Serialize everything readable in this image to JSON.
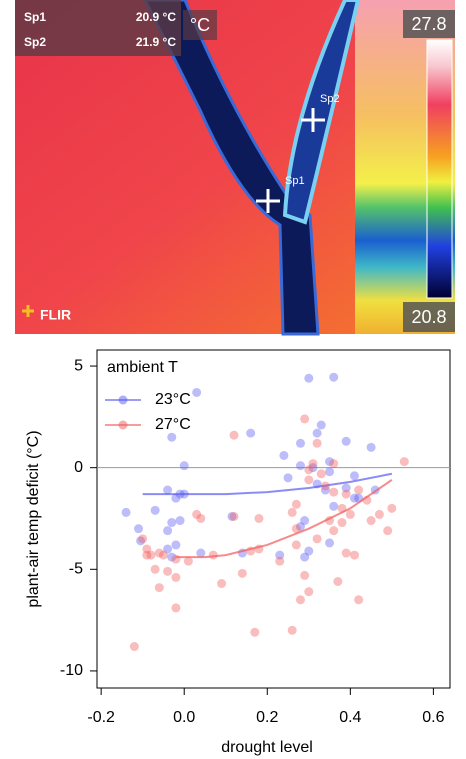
{
  "thermal_image": {
    "spots": [
      {
        "label": "Sp1",
        "value": "20.9 °C"
      },
      {
        "label": "Sp2",
        "value": "21.9 °C"
      }
    ],
    "unit": "°C",
    "scale_max": 27.8,
    "scale_min": 20.8,
    "brand": "FLIR",
    "markers": [
      "Sp1",
      "Sp2"
    ]
  },
  "chart_data": {
    "type": "scatter",
    "x_label": "drought level",
    "y_label": "plant-air temp deficit (°C)",
    "legend_title": "ambient T",
    "legend": "top-left",
    "xlim": [
      -0.21,
      0.64
    ],
    "ylim": [
      -10.84,
      5.79
    ],
    "xticks": [
      -0.2,
      {
        "value": 0,
        "label": "0.0"
      },
      0.2,
      0.4,
      0.6
    ],
    "yticks": [
      5,
      0,
      -5,
      -10
    ],
    "reference_line": 0,
    "series": [
      {
        "name": "23°C",
        "color": "#5a5af2",
        "x": [
          0.03,
          0.3,
          0.36,
          0.16,
          -0.03,
          0.0,
          0.33,
          0.32,
          0.39,
          0.45,
          0.28,
          0.24,
          0.35,
          0.28,
          0.31,
          0.35,
          0.41,
          0.32,
          0.39,
          0.46,
          -0.04,
          -0.01,
          0.0,
          -0.02,
          -0.07,
          -0.14,
          -0.03,
          -0.01,
          -0.11,
          -0.04,
          -0.105,
          -0.04,
          -0.02,
          0.04,
          -0.03,
          0.14,
          0.23,
          0.29,
          0.3,
          0.35,
          0.28,
          0.29,
          0.36,
          0.41,
          0.42,
          0.115,
          0.25,
          0.34
        ],
        "values": [
          3.7,
          4.4,
          4.45,
          1.7,
          1.5,
          0.1,
          2.1,
          1.7,
          1.3,
          1.0,
          1.2,
          0.6,
          0.3,
          0.1,
          0,
          -0.2,
          -0.4,
          -0.8,
          -1.0,
          -1.1,
          -1.1,
          -1.3,
          -1.3,
          -1.5,
          -2.1,
          -2.2,
          -2.7,
          -2.6,
          -3.0,
          -3.1,
          -3.6,
          -4.0,
          -3.8,
          -4.2,
          -4.4,
          -4.2,
          -4.3,
          -4.4,
          -4.1,
          -3.7,
          -2.9,
          -2.6,
          -1.9,
          -1.5,
          -1.5,
          -2.4,
          -0.5,
          -1.1
        ],
        "fit_x": [
          -0.1,
          0,
          0.1,
          0.2,
          0.3,
          0.4,
          0.5
        ],
        "fit": [
          -1.3,
          -1.3,
          -1.3,
          -1.2,
          -1.0,
          -0.7,
          -0.3
        ]
      },
      {
        "name": "27°C",
        "color": "#f25a5a",
        "x": [
          0.12,
          0.29,
          0.32,
          0.3,
          0.31,
          0.33,
          0.36,
          0.53,
          0.3,
          0.34,
          0.36,
          0.39,
          0.42,
          0.44,
          0.27,
          0.26,
          0.38,
          0.4,
          0.45,
          0.47,
          0.5,
          0.35,
          0.38,
          0.03,
          0.04,
          0.12,
          0.18,
          0.27,
          0.36,
          0.49,
          -0.1,
          -0.09,
          -0.08,
          -0.05,
          -0.06,
          -0.02,
          0.01,
          0.07,
          0.16,
          0.18,
          0.27,
          0.32,
          0.39,
          0.41,
          0.23,
          -0.07,
          -0.04,
          -0.02,
          -0.06,
          0.09,
          0.14,
          0.29,
          0.37,
          0.28,
          0.3,
          0.42,
          -0.02,
          0.17,
          0.26,
          -0.12,
          -0.09
        ],
        "values": [
          1.6,
          2.4,
          1.2,
          -0.1,
          0.2,
          -0.3,
          0.2,
          0.3,
          -0.6,
          -0.9,
          -1.2,
          -1.3,
          -1.1,
          -1.6,
          -1.8,
          -2.2,
          -2.0,
          -2.3,
          -2.6,
          -2.3,
          -2.0,
          -2.6,
          -2.7,
          -2.3,
          -2.5,
          -2.4,
          -2.5,
          -3.0,
          -3.1,
          -3.1,
          -3.5,
          -4.0,
          -4.3,
          -4.3,
          -4.2,
          -4.5,
          -4.6,
          -4.3,
          -4.1,
          -4.0,
          -3.8,
          -3.5,
          -4.2,
          -4.3,
          -4.6,
          -5.0,
          -5.1,
          -5.4,
          -5.9,
          -5.7,
          -5.2,
          -5.3,
          -5.6,
          -6.5,
          -6.1,
          -6.5,
          -6.9,
          -8.1,
          -8.0,
          -8.8,
          -4.3
        ],
        "fit_x": [
          -0.02,
          0.05,
          0.1,
          0.2,
          0.3,
          0.4,
          0.5
        ],
        "fit": [
          -4.4,
          -4.4,
          -4.3,
          -3.8,
          -3.0,
          -2.0,
          -0.6
        ]
      }
    ]
  }
}
